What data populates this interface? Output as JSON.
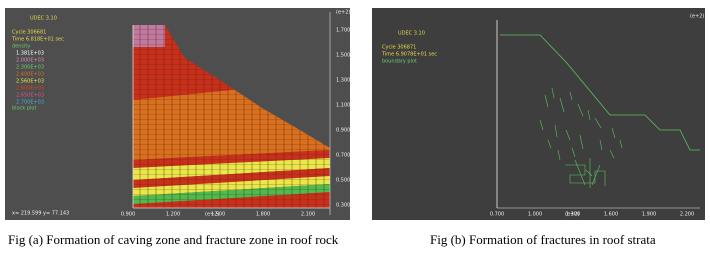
{
  "figure_a": {
    "header": "UDEC 3.10",
    "cycle": "Cycle   306681",
    "time": "Time   6.818E+01 sec",
    "legend_title": "density",
    "legend": [
      "1.381E+03",
      "2.000E+03",
      "2.300E+03",
      "2.400E+03",
      "2.560E+03",
      "2.600E+03",
      "2.650E+03",
      "2.700E+03"
    ],
    "block_plot": "block plot",
    "y_unit": "(e+2)",
    "y_ticks": [
      "1.700",
      "1.500",
      "1.300",
      "1.100",
      "0.900",
      "0.700",
      "0.500",
      "0.300"
    ],
    "x_ticks": [
      "0.900",
      "1.200",
      "1.500",
      "1.800",
      "2.100"
    ],
    "x_unit": "(e+2)",
    "cursor": "x=      219.599  y=      77.143",
    "caption": "Fig (a) Formation of caving zone and fracture zone in roof rock"
  },
  "figure_b": {
    "header": "UDEC 3.10",
    "cycle": "Cycle   306871",
    "time": "Time   6.9078E+01 sec",
    "boundary_plot": "boundary plot",
    "y_unit": "(e+2)",
    "x_ticks": [
      "0.700",
      "1.000",
      "1.300",
      "1.600",
      "1.900",
      "2.200"
    ],
    "x_unit": "(e+2)",
    "caption": "Fig (b) Formation of fractures in roof strata"
  }
}
